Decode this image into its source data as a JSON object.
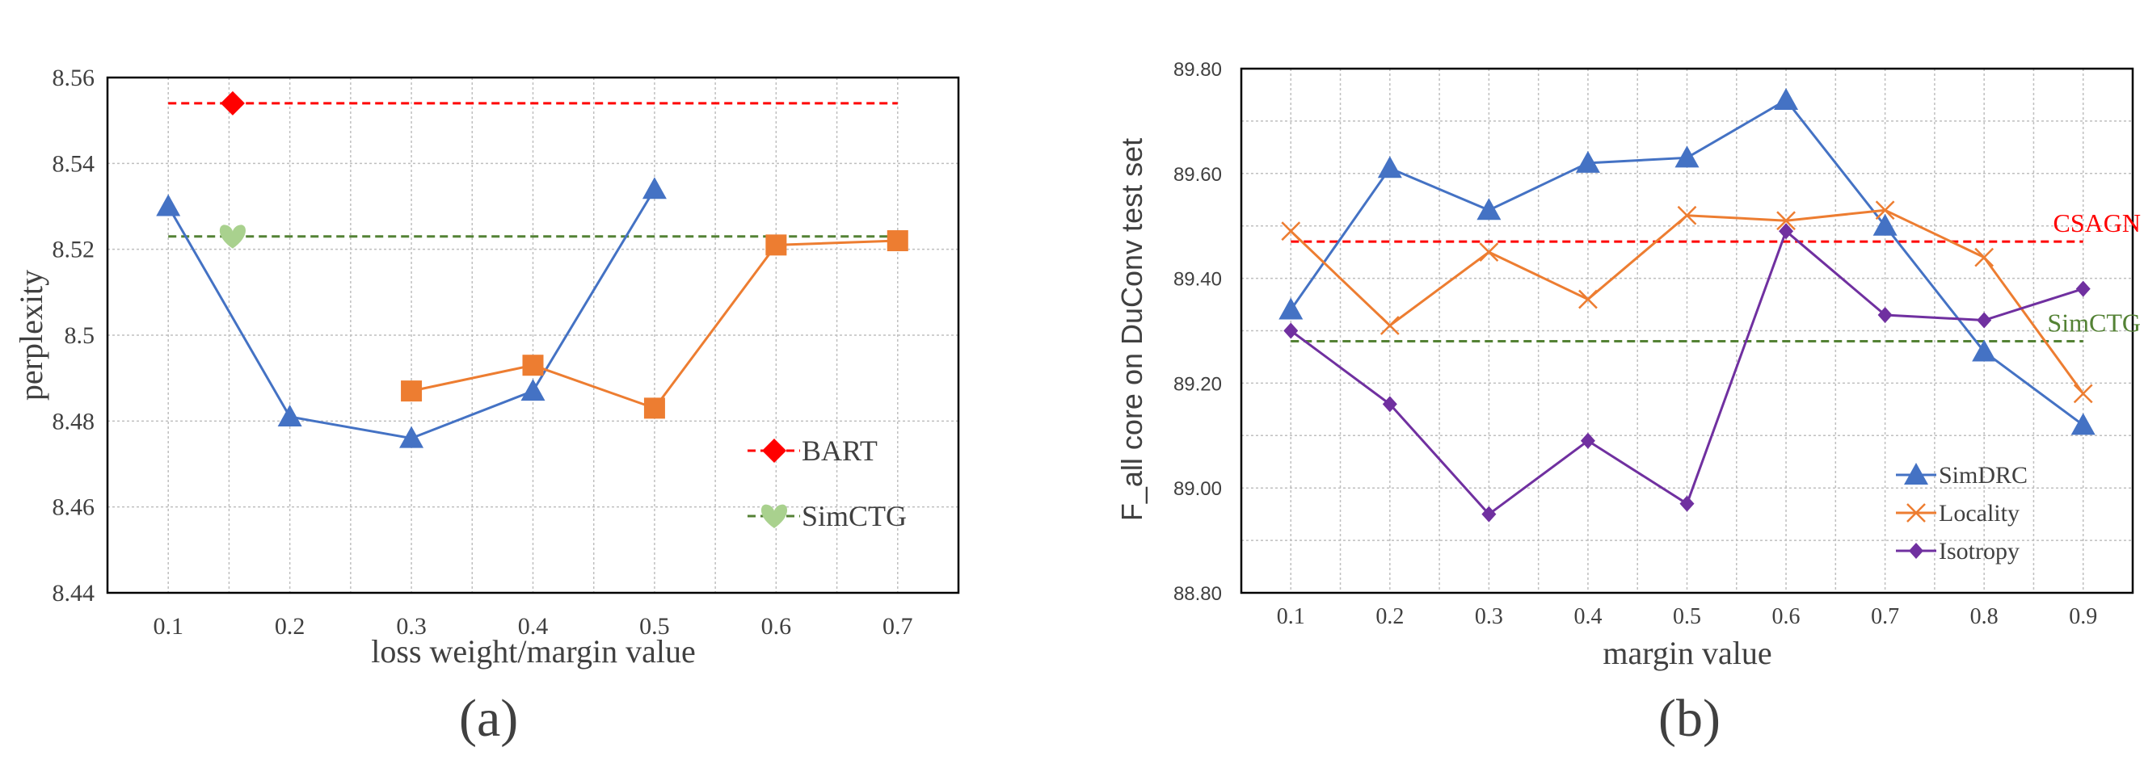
{
  "chart_data": [
    {
      "type": "line",
      "caption": "(a)",
      "xlabel": "loss weight/margin value",
      "ylabel": "perplexity",
      "x_ticks": [
        "0.1",
        "0.2",
        "0.3",
        "0.4",
        "0.5",
        "0.6",
        "0.7"
      ],
      "y_ticks": [
        "8.44",
        "8.46",
        "8.48",
        "8.5",
        "8.52",
        "8.54",
        "8.56"
      ],
      "ylim": [
        8.44,
        8.56
      ],
      "xlim": [
        0.05,
        0.75
      ],
      "grid": true,
      "legend_position": "bottom-right",
      "series": [
        {
          "x": [
            0.1,
            0.2,
            0.3,
            0.4,
            0.5
          ],
          "values": [
            8.53,
            8.481,
            8.476,
            8.487,
            8.534
          ],
          "color": "#4472C4",
          "marker": "triangle"
        },
        {
          "x": [
            0.3,
            0.4,
            0.5,
            0.6,
            0.7
          ],
          "values": [
            8.487,
            8.493,
            8.483,
            8.521,
            8.522
          ],
          "color": "#ED7D31",
          "marker": "square"
        }
      ],
      "reference_lines": [
        {
          "name": "BART",
          "value": 8.554,
          "color": "#FF0000",
          "marker": "diamond",
          "marker_x": 0.153
        },
        {
          "name": "SimCTG",
          "value": 8.523,
          "color": "#548235",
          "marker_color": "#A9D18E",
          "marker": "heart",
          "marker_x": 0.153
        }
      ]
    },
    {
      "type": "line",
      "caption": "(b)",
      "xlabel": "margin value",
      "ylabel": "F_all core on DuConv test set",
      "x_ticks": [
        "0.1",
        "0.2",
        "0.3",
        "0.4",
        "0.5",
        "0.6",
        "0.7",
        "0.8",
        "0.9"
      ],
      "y_ticks": [
        "88.80",
        "89.00",
        "89.20",
        "89.40",
        "89.60",
        "89.80"
      ],
      "ylim": [
        88.8,
        89.8
      ],
      "xlim": [
        0.05,
        0.95
      ],
      "grid": true,
      "legend_position": "bottom-right",
      "series": [
        {
          "name": "SimDRC",
          "x": [
            0.1,
            0.2,
            0.3,
            0.4,
            0.5,
            0.6,
            0.7,
            0.8,
            0.9
          ],
          "values": [
            89.34,
            89.61,
            89.53,
            89.62,
            89.63,
            89.74,
            89.5,
            89.26,
            89.12
          ],
          "color": "#4472C4",
          "marker": "triangle"
        },
        {
          "name": "Locality",
          "x": [
            0.1,
            0.2,
            0.3,
            0.4,
            0.5,
            0.6,
            0.7,
            0.8,
            0.9
          ],
          "values": [
            89.49,
            89.31,
            89.45,
            89.36,
            89.52,
            89.51,
            89.53,
            89.44,
            89.18
          ],
          "color": "#ED7D31",
          "marker": "x"
        },
        {
          "name": "Isotropy",
          "x": [
            0.1,
            0.2,
            0.3,
            0.4,
            0.5,
            0.6,
            0.7,
            0.8,
            0.9
          ],
          "values": [
            89.3,
            89.16,
            88.95,
            89.09,
            88.97,
            89.49,
            89.33,
            89.32,
            89.38
          ],
          "color": "#7030A0",
          "marker": "diamond"
        }
      ],
      "reference_lines": [
        {
          "name": "CSAGN",
          "value": 89.47,
          "color": "#FF0000"
        },
        {
          "name": "SimCTG",
          "value": 89.28,
          "color": "#548235"
        }
      ]
    }
  ]
}
